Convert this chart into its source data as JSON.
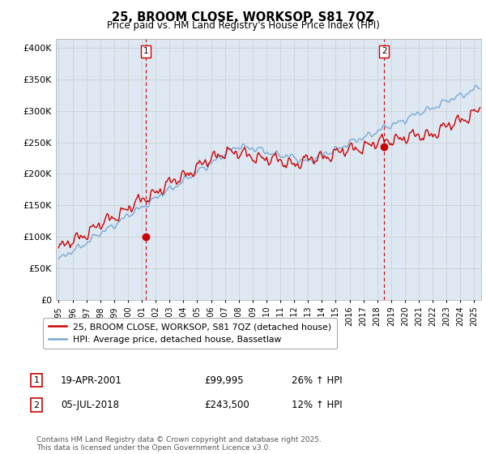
{
  "title": "25, BROOM CLOSE, WORKSOP, S81 7QZ",
  "subtitle": "Price paid vs. HM Land Registry's House Price Index (HPI)",
  "ylabel_ticks": [
    "£0",
    "£50K",
    "£100K",
    "£150K",
    "£200K",
    "£250K",
    "£300K",
    "£350K",
    "£400K"
  ],
  "ytick_values": [
    0,
    50000,
    100000,
    150000,
    200000,
    250000,
    300000,
    350000,
    400000
  ],
  "ylim": [
    0,
    415000
  ],
  "xlim_start": 1994.8,
  "xlim_end": 2025.5,
  "red_color": "#cc0000",
  "blue_color": "#7aa8d2",
  "blue_fill": "#dde8f3",
  "marker1_x": 2001.29,
  "marker1_y": 99995,
  "marker2_x": 2018.5,
  "marker2_y": 243500,
  "marker1_label": "1",
  "marker2_label": "2",
  "legend_red": "25, BROOM CLOSE, WORKSOP, S81 7QZ (detached house)",
  "legend_blue": "HPI: Average price, detached house, Bassetlaw",
  "ann1_label": "1",
  "ann1_date": "19-APR-2001",
  "ann1_price": "£99,995",
  "ann1_hpi": "26% ↑ HPI",
  "ann2_label": "2",
  "ann2_date": "05-JUL-2018",
  "ann2_price": "£243,500",
  "ann2_hpi": "12% ↑ HPI",
  "footer": "Contains HM Land Registry data © Crown copyright and database right 2025.\nThis data is licensed under the Open Government Licence v3.0.",
  "grid_color": "#cccccc",
  "vline_color": "#cc0000",
  "background_color": "#ffffff"
}
